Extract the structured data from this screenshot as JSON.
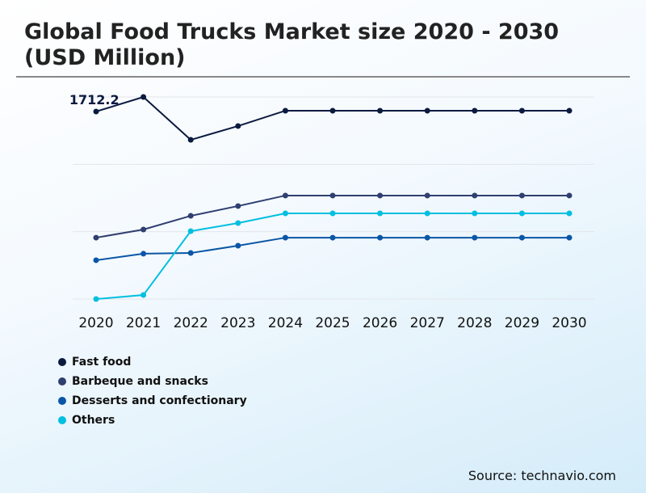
{
  "title": "Global Food Trucks Market size 2020 - 2030 (USD Million)",
  "source": "Source: technavio.com",
  "chart_data": {
    "type": "line",
    "title": "Global Food Trucks Market size 2020 - 2030 (USD Million)",
    "categories": [
      "2020",
      "2021",
      "2022",
      "2023",
      "2024",
      "2025",
      "2026",
      "2027",
      "2028",
      "2029",
      "2030"
    ],
    "ylim": [
      0,
      1712.2
    ],
    "grid": true,
    "legend_position": "bottom-left",
    "annotation": {
      "series": "Fast food",
      "year": "2021",
      "label": "1712.2"
    },
    "series": [
      {
        "name": "Fast food",
        "color": "#0b1a3f",
        "values": [
          1589,
          1712.2,
          1349,
          1466,
          1596,
          1596,
          1596,
          1596,
          1596,
          1596,
          1596
        ]
      },
      {
        "name": "Barbeque and snacks",
        "color": "#2f3f70",
        "values": [
          520,
          589,
          705,
          788,
          877,
          877,
          877,
          877,
          877,
          877,
          877
        ]
      },
      {
        "name": "Desserts and confectionary",
        "color": "#0a56a6",
        "values": [
          329,
          384,
          390,
          452,
          520,
          520,
          520,
          520,
          520,
          520,
          520
        ]
      },
      {
        "name": "Others",
        "color": "#00bfe0",
        "values": [
          0,
          34,
          575,
          644,
          726,
          726,
          726,
          726,
          726,
          726,
          726
        ]
      }
    ]
  }
}
